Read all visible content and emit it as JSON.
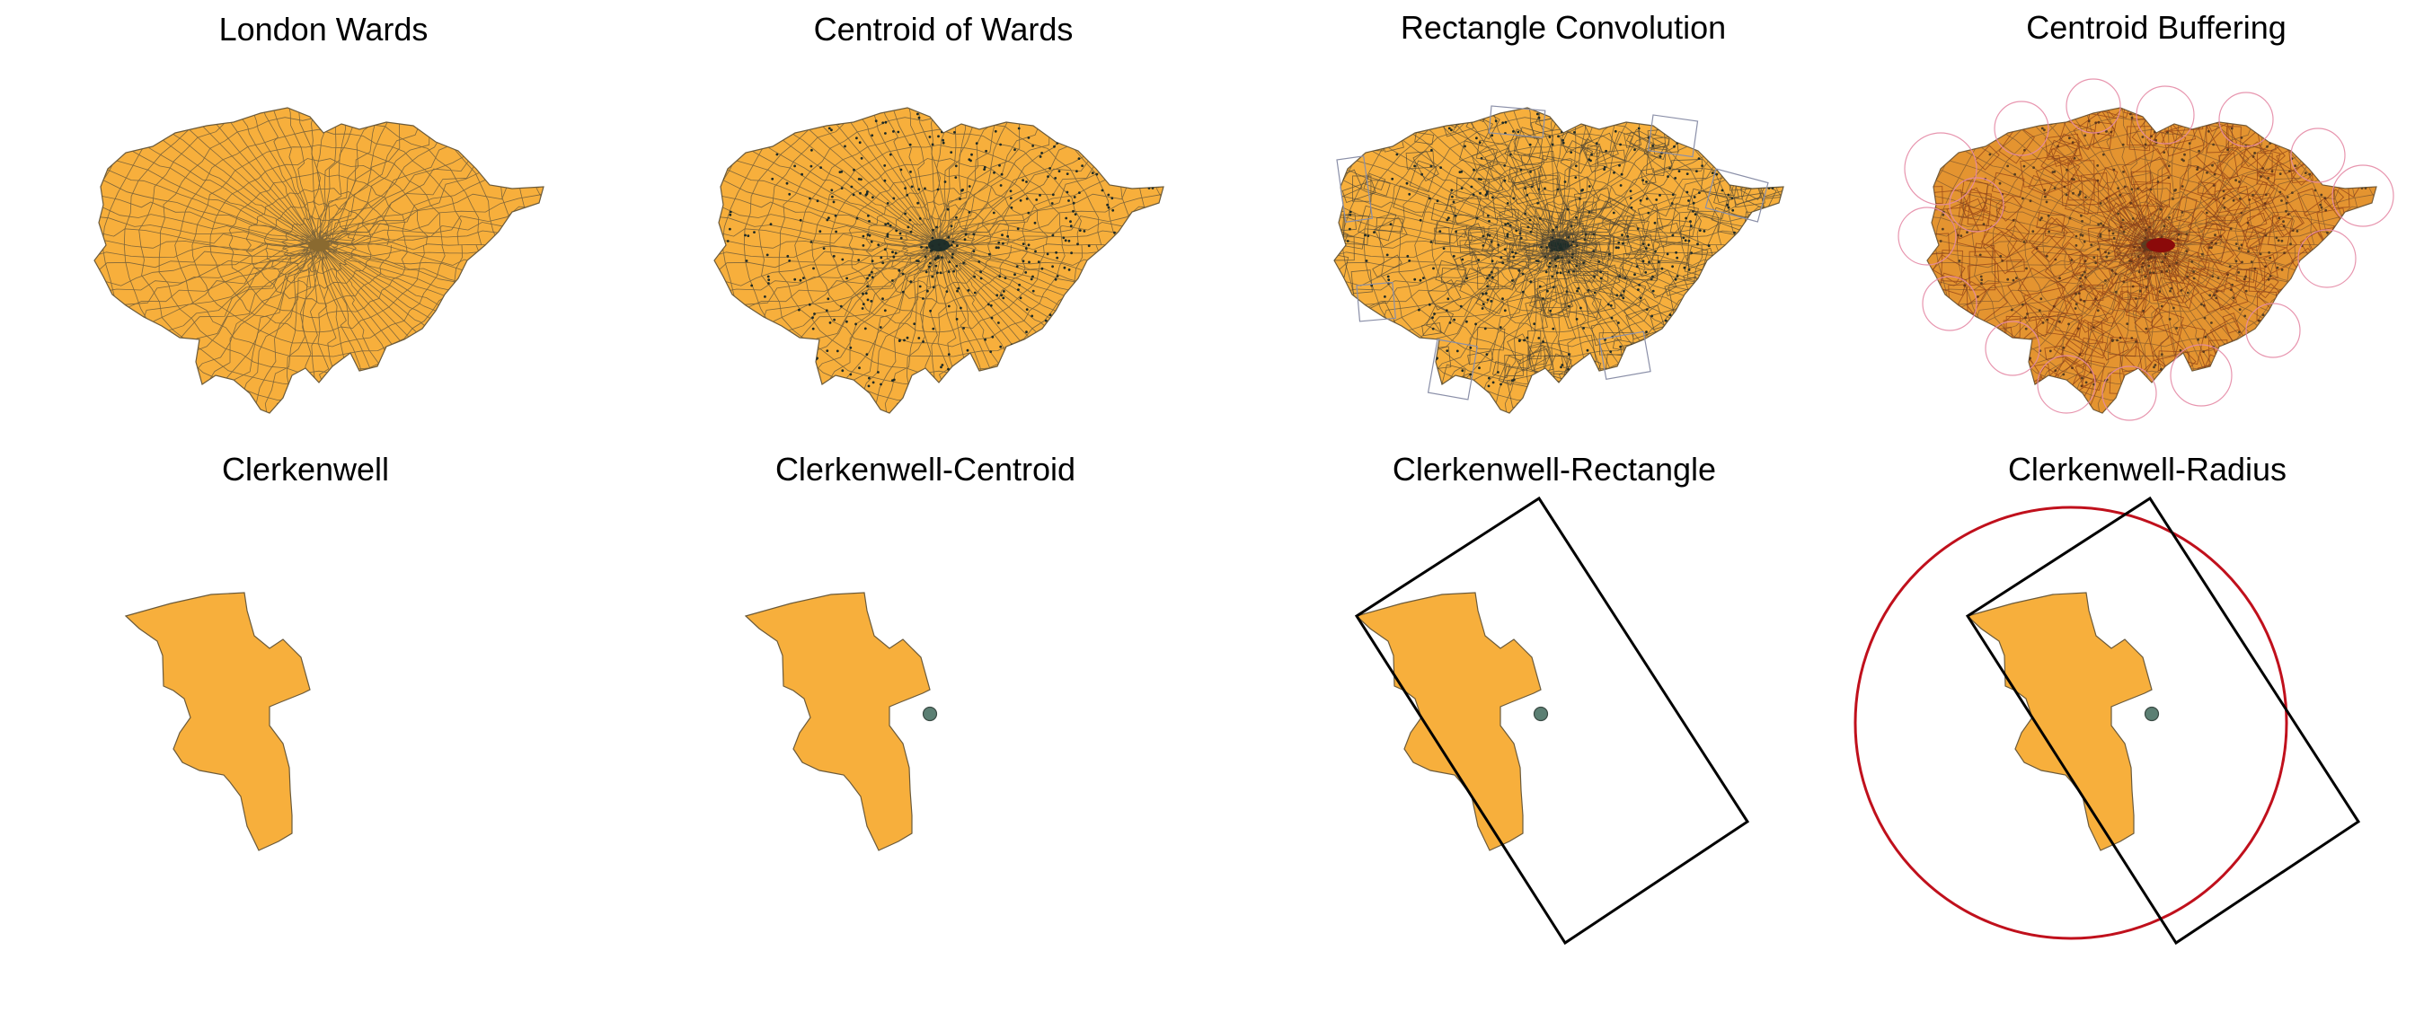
{
  "colors": {
    "ward_fill": "#F7AF3C",
    "ward_stroke": "#6b5a3a",
    "centroid_fill": "#5b7f73",
    "centroid_stroke": "#3a4a44",
    "rectangle_stroke": "#000000",
    "overview_rectangle_stroke": "#8a8fa8",
    "circle_stroke": "#c0101c",
    "overview_circle_stroke": "#e58aa6",
    "dense_centroid_overlay": "#8b0a0a"
  },
  "panels": {
    "london_wards": {
      "title": "London Wards"
    },
    "centroid_of_wards": {
      "title": "Centroid of Wards"
    },
    "rectangle_convolution": {
      "title": "Rectangle Convolution"
    },
    "centroid_buffering": {
      "title": "Centroid Buffering"
    },
    "clerkenwell": {
      "title": "Clerkenwell"
    },
    "clerkenwell_centroid": {
      "title": "Clerkenwell-Centroid"
    },
    "clerkenwell_rectangle": {
      "title": "Clerkenwell-Rectangle"
    },
    "clerkenwell_radius": {
      "title": "Clerkenwell-Radius"
    }
  }
}
